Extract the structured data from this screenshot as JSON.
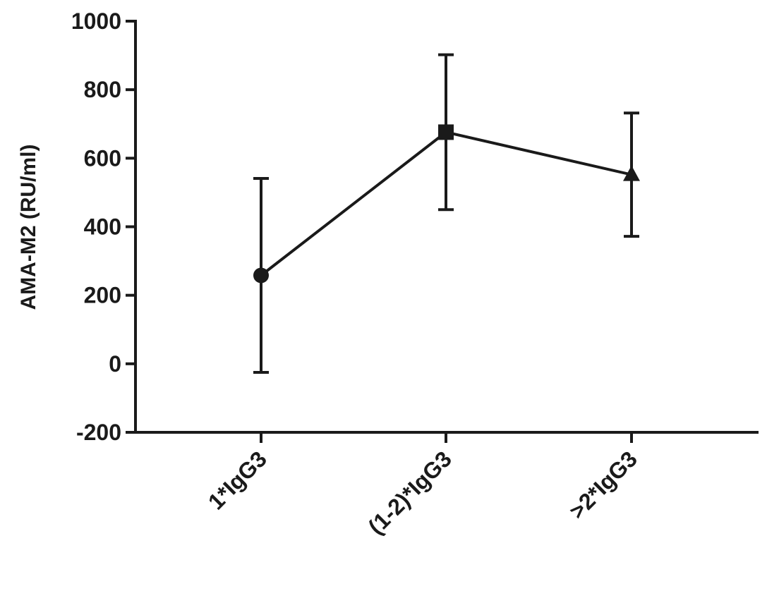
{
  "chart_data": {
    "type": "line",
    "y_label": "AMA-M2 (RU/ml)",
    "categories": [
      "1*IgG3",
      "(1-2)*IgG3",
      ">2*IgG3"
    ],
    "series": [
      {
        "color": "#1a1a1a",
        "values": [
          258,
          676,
          552
        ],
        "errors": [
          283,
          226,
          180
        ],
        "markers": [
          "circle",
          "square",
          "triangle"
        ]
      }
    ],
    "ylim": [
      -200,
      1000
    ],
    "yticks": [
      -200,
      0,
      200,
      400,
      600,
      800,
      1000
    ]
  }
}
